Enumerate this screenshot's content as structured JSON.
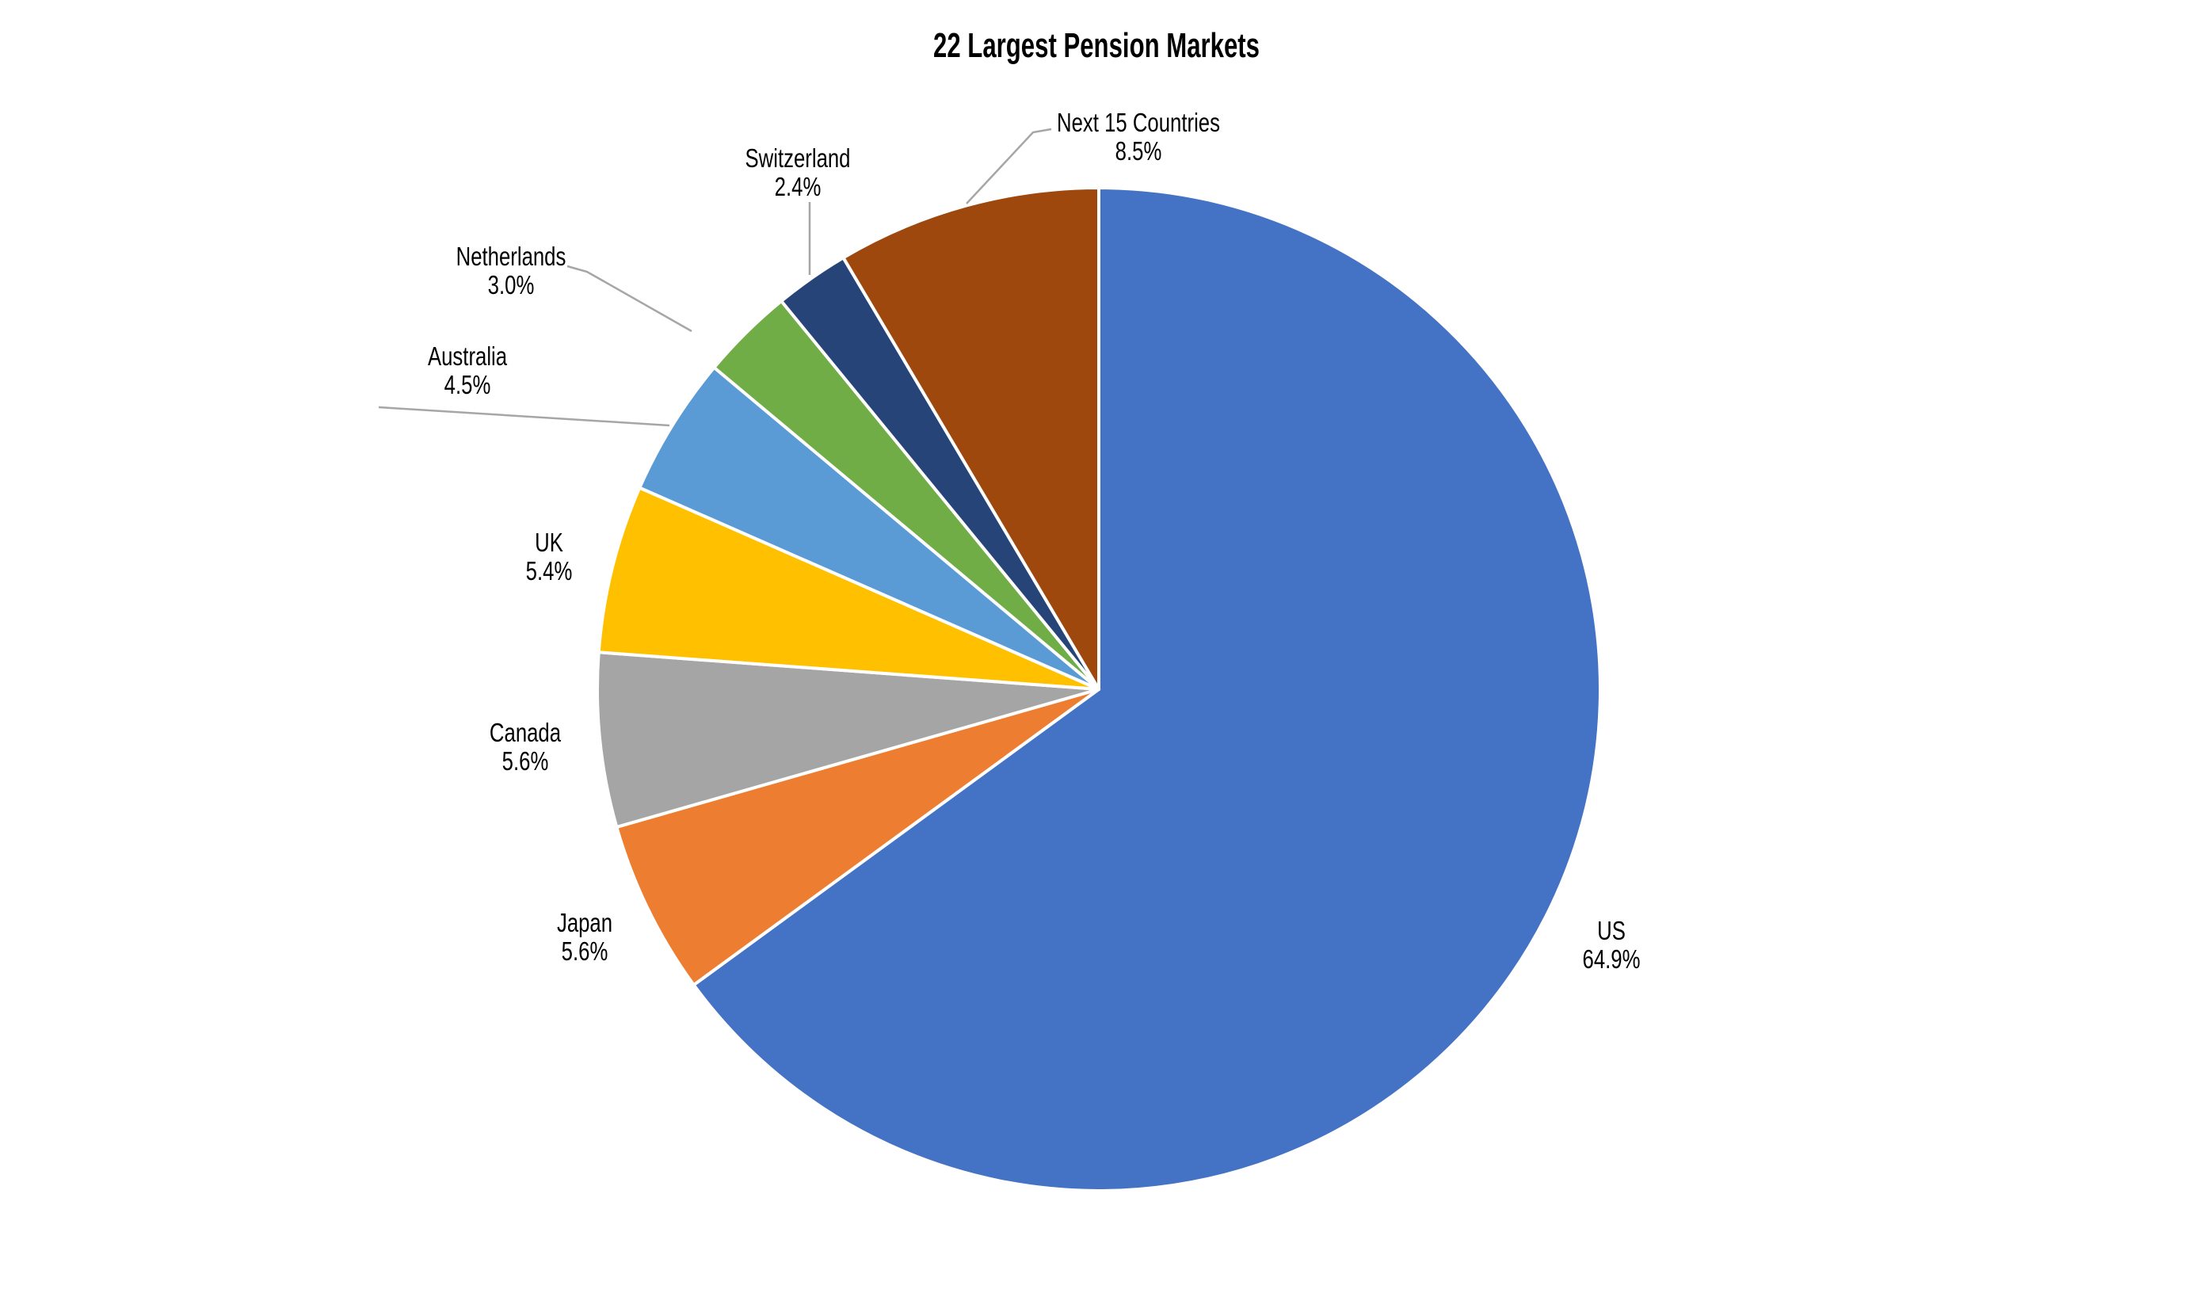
{
  "chart_data": {
    "type": "pie",
    "title": "22 Largest Pension Markets",
    "categories": [
      "US",
      "Japan",
      "Canada",
      "UK",
      "Australia",
      "Netherlands",
      "Switzerland",
      "Next 15 Countries"
    ],
    "values": [
      64.9,
      5.6,
      5.6,
      5.4,
      4.5,
      3.0,
      2.4,
      8.5
    ],
    "unit": "%",
    "colors": [
      "#4472C4",
      "#ED7D31",
      "#A5A5A5",
      "#FFC000",
      "#5B9BD5",
      "#70AD47",
      "#264478",
      "#9E480E"
    ],
    "start_angle_deg": 0,
    "direction": "clockwise",
    "legend_position": "none",
    "label_style": "outside, category name above percentage",
    "background_color": "#FFFFFF",
    "slice_border_color": "#FFFFFF",
    "leader_line_color": "#A6A6A6",
    "title_color": "#000000",
    "label_color": "#000000"
  }
}
